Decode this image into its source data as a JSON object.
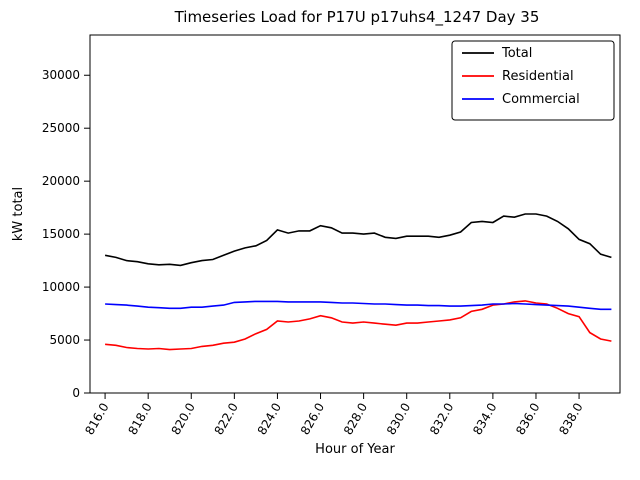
{
  "chart_data": {
    "type": "line",
    "title": "Timeseries Load for P17U p17uhs4_1247  Day 35",
    "xlabel": "Hour of Year",
    "ylabel": "kW total",
    "xlim": [
      815.3,
      839.9
    ],
    "ylim": [
      0,
      33800
    ],
    "grid": false,
    "legend_position": "upper right",
    "x_ticks": [
      816,
      818,
      820,
      822,
      824,
      826,
      828,
      830,
      832,
      834,
      836,
      838
    ],
    "x_tick_labels": [
      "816.0",
      "818.0",
      "820.0",
      "822.0",
      "824.0",
      "826.0",
      "828.0",
      "830.0",
      "832.0",
      "834.0",
      "836.0",
      "838.0"
    ],
    "y_ticks": [
      0,
      5000,
      10000,
      15000,
      20000,
      25000,
      30000
    ],
    "y_tick_labels": [
      "0",
      "5000",
      "10000",
      "15000",
      "20000",
      "25000",
      "30000"
    ],
    "x": [
      816,
      816.5,
      817,
      817.5,
      818,
      818.5,
      819,
      819.5,
      820,
      820.5,
      821,
      821.5,
      822,
      822.5,
      823,
      823.5,
      824,
      824.5,
      825,
      825.5,
      826,
      826.5,
      827,
      827.5,
      828,
      828.5,
      829,
      829.5,
      830,
      830.5,
      831,
      831.5,
      832,
      832.5,
      833,
      833.5,
      834,
      834.5,
      835,
      835.5,
      836,
      836.5,
      837,
      837.5,
      838,
      838.5,
      839,
      839.5
    ],
    "series": [
      {
        "name": "Total",
        "color": "#000000",
        "values": [
          13000,
          12800,
          12500,
          12400,
          12200,
          12100,
          12150,
          12050,
          12300,
          12500,
          12600,
          13000,
          13400,
          13700,
          13900,
          14400,
          15400,
          15100,
          15300,
          15300,
          15800,
          15600,
          15100,
          15100,
          15000,
          15100,
          14700,
          14600,
          14800,
          14800,
          14800,
          14700,
          14900,
          15200,
          16100,
          16200,
          16100,
          16700,
          16600,
          16900,
          16900,
          16700,
          16200,
          15500,
          14500,
          14100,
          13100,
          12800
        ]
      },
      {
        "name": "Residential",
        "color": "#ff0000",
        "values": [
          4600,
          4500,
          4300,
          4200,
          4150,
          4200,
          4100,
          4150,
          4200,
          4400,
          4500,
          4700,
          4800,
          5100,
          5600,
          6000,
          6800,
          6700,
          6800,
          7000,
          7300,
          7100,
          6700,
          6600,
          6700,
          6600,
          6500,
          6400,
          6600,
          6600,
          6700,
          6800,
          6900,
          7100,
          7700,
          7900,
          8300,
          8400,
          8600,
          8700,
          8500,
          8400,
          8000,
          7500,
          7200,
          5700,
          5100,
          4900
        ]
      },
      {
        "name": "Commercial",
        "color": "#0000ff",
        "values": [
          8400,
          8350,
          8300,
          8200,
          8100,
          8050,
          8000,
          8000,
          8100,
          8100,
          8200,
          8300,
          8550,
          8600,
          8650,
          8650,
          8650,
          8600,
          8600,
          8600,
          8600,
          8550,
          8500,
          8500,
          8450,
          8400,
          8400,
          8350,
          8300,
          8300,
          8250,
          8250,
          8200,
          8200,
          8250,
          8300,
          8400,
          8400,
          8450,
          8400,
          8350,
          8300,
          8250,
          8200,
          8100,
          8000,
          7900,
          7900
        ]
      }
    ]
  }
}
